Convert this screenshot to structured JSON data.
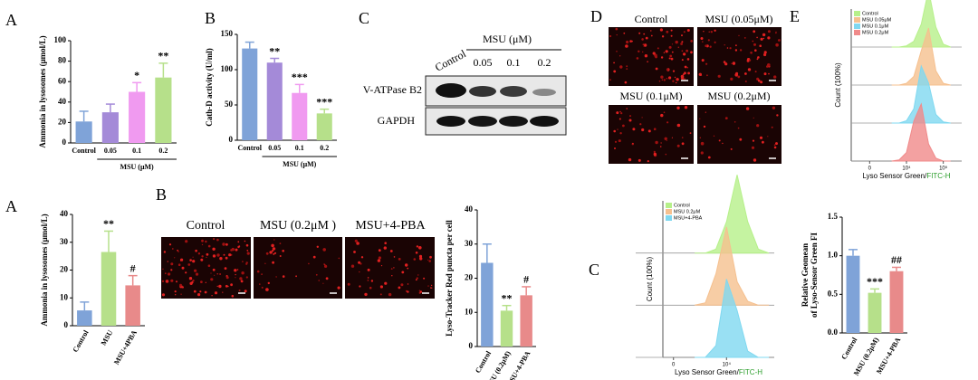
{
  "figure": {
    "panel_letters": [
      "A",
      "B",
      "C",
      "D",
      "E",
      "A",
      "B",
      "C"
    ],
    "blot": {
      "title": "MSU (μM)",
      "lanes": [
        "Control",
        "0.05",
        "0.1",
        "0.2"
      ],
      "rows": [
        "V-ATPase B2",
        "GAPDH"
      ]
    },
    "d_images": [
      "Control",
      "MSU (0.05μM)",
      "MSU (0.1μM)",
      "MSU (0.2μM)"
    ],
    "b_images": [
      "Control",
      "MSU (0.2μM )",
      "MSU+4-PBA"
    ]
  },
  "chart_data": [
    {
      "type": "bar",
      "ylabel": "Ammonia in lysosomes (μmol/L)",
      "categories": [
        "Control",
        "0.05",
        "0.1",
        "0.2"
      ],
      "group_label": "MSU (μM)",
      "values": [
        21,
        30,
        50,
        64
      ],
      "errors": [
        10,
        8,
        9,
        14
      ],
      "annotations": [
        null,
        null,
        "*",
        "**"
      ],
      "colors": [
        "#7fa3d8",
        "#a48ad8",
        "#f09af0",
        "#b6e08a"
      ],
      "ylim": [
        0,
        100
      ],
      "yticks": [
        0,
        20,
        40,
        60,
        80,
        100
      ]
    },
    {
      "type": "bar",
      "ylabel": "Cath-D activity (U/ml)",
      "categories": [
        "Control",
        "0.05",
        "0.1",
        "0.2"
      ],
      "group_label": "MSU (μM)",
      "values": [
        130,
        110,
        67,
        38
      ],
      "errors": [
        9,
        6,
        12,
        6
      ],
      "annotations": [
        null,
        "**",
        "***",
        "***"
      ],
      "colors": [
        "#7fa3d8",
        "#a48ad8",
        "#f09af0",
        "#b6e08a"
      ],
      "ylim": [
        0,
        150
      ],
      "yticks": [
        0,
        50,
        100,
        150
      ]
    },
    {
      "type": "ridgeline",
      "ylabel": "Count (100%)",
      "xlabel": [
        "Lyso Sensor Green/",
        "FITC-H"
      ],
      "xlabel_colors": [
        "#000000",
        "#2a9d2a"
      ],
      "x": [
        3.6,
        3.8,
        4.0,
        4.2,
        4.4,
        4.6,
        4.8,
        5.0,
        5.2
      ],
      "series": [
        {
          "name": "Control",
          "color": "#b6f08a",
          "values": [
            0,
            0,
            2,
            10,
            40,
            100,
            35,
            5,
            0
          ]
        },
        {
          "name": "MSU 0.05μM",
          "color": "#f5c08f",
          "values": [
            0,
            0,
            3,
            15,
            60,
            100,
            25,
            3,
            0
          ]
        },
        {
          "name": "MSU 0.1μM",
          "color": "#7fd8f0",
          "values": [
            0,
            0,
            4,
            25,
            100,
            70,
            15,
            2,
            0
          ]
        },
        {
          "name": "MSU 0.2μM",
          "color": "#f08a8a",
          "values": [
            0,
            2,
            15,
            70,
            100,
            30,
            5,
            0,
            0
          ]
        }
      ],
      "xlim": [
        2.5,
        5.5
      ],
      "xticks": [
        {
          "value": 3,
          "label": "0"
        },
        {
          "value": 4,
          "label": "10⁴"
        },
        {
          "value": 5,
          "label": "10⁵"
        }
      ],
      "ylim": [
        0,
        100
      ],
      "legend": "top-left"
    },
    {
      "type": "bar",
      "ylabel": "Ammonia in lysosomes (μmol/L)",
      "categories": [
        "Control",
        "MSU",
        "MSU+4PBA"
      ],
      "values": [
        5.5,
        26.5,
        14.5
      ],
      "errors": [
        3,
        7.5,
        3.5
      ],
      "annotations": [
        null,
        "**",
        "#"
      ],
      "colors": [
        "#7fa3d8",
        "#b6e08a",
        "#e88a8a"
      ],
      "ylim": [
        0,
        40
      ],
      "yticks": [
        0,
        10,
        20,
        30,
        40
      ]
    },
    {
      "type": "bar",
      "ylabel": "Lyso-Tracker Red puncta per cell",
      "categories": [
        "Control",
        "MSU (0.2μM)",
        "MSU+4-PBA"
      ],
      "values": [
        24.5,
        10.5,
        15
      ],
      "errors": [
        5.5,
        1.5,
        2.5
      ],
      "annotations": [
        null,
        "**",
        "#"
      ],
      "colors": [
        "#7fa3d8",
        "#b6e08a",
        "#e88a8a"
      ],
      "ylim": [
        0,
        40
      ],
      "yticks": [
        0,
        10,
        20,
        30,
        40
      ]
    },
    {
      "type": "ridgeline",
      "ylabel": "Count (100%)",
      "xlabel": [
        "Lyso Sensor Green/",
        "FITC-H"
      ],
      "xlabel_colors": [
        "#000000",
        "#2a9d2a"
      ],
      "x": [
        3.4,
        3.6,
        3.8,
        4.0,
        4.2,
        4.4,
        4.6,
        4.8
      ],
      "series": [
        {
          "name": "Control",
          "color": "#b6f08a",
          "values": [
            0,
            0,
            5,
            40,
            100,
            40,
            5,
            0
          ]
        },
        {
          "name": "MSU 0.2μM",
          "color": "#f5c08f",
          "values": [
            0,
            3,
            40,
            100,
            30,
            5,
            0,
            0
          ]
        },
        {
          "name": "MSU+4-PBA",
          "color": "#7fd8f0",
          "values": [
            0,
            0,
            15,
            100,
            60,
            8,
            0,
            0
          ]
        }
      ],
      "xlim": [
        2.8,
        4.9
      ],
      "xticks": [
        {
          "value": 3,
          "label": "0"
        },
        {
          "value": 4,
          "label": "10⁴"
        }
      ],
      "ylim": [
        0,
        100
      ],
      "legend": "top-left"
    },
    {
      "type": "bar",
      "ylabel": [
        "Relative Geomean",
        "of Lyso-Sensor Green FI"
      ],
      "categories": [
        "Control",
        "MSU (0.2μM)",
        "MSU+4-PBA"
      ],
      "values": [
        1.0,
        0.52,
        0.8
      ],
      "errors": [
        0.08,
        0.05,
        0.05
      ],
      "annotations": [
        null,
        "***",
        "##"
      ],
      "colors": [
        "#7fa3d8",
        "#b6e08a",
        "#e88a8a"
      ],
      "ylim": [
        0,
        1.5
      ],
      "yticks": [
        {
          "value": 0,
          "label": "0.0"
        },
        {
          "value": 0.5,
          "label": "0.5"
        },
        {
          "value": 1,
          "label": "1.0"
        },
        {
          "value": 1.5,
          "label": "1.5"
        }
      ]
    }
  ]
}
